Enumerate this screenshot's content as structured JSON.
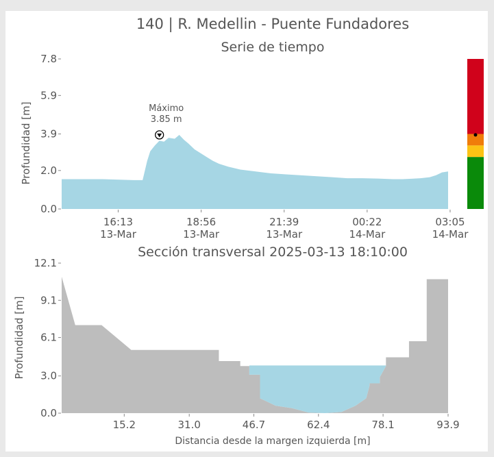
{
  "header": {
    "title": "140 | R. Medellin - Puente Fundadores"
  },
  "chart_data": [
    {
      "type": "area",
      "title": "Serie de tiempo",
      "ylabel": "Profundidad [m]",
      "ylim": [
        0.0,
        7.8
      ],
      "yticks": [
        "0.0",
        "2.0",
        "3.9",
        "5.9",
        "7.8"
      ],
      "xticks": [
        {
          "time": "16:13",
          "date": "13-Mar"
        },
        {
          "time": "18:56",
          "date": "13-Mar"
        },
        {
          "time": "21:39",
          "date": "13-Mar"
        },
        {
          "time": "00:22",
          "date": "14-Mar"
        },
        {
          "time": "03:05",
          "date": "14-Mar"
        }
      ],
      "x_hours_since_first_tick": [
        -1.85,
        -0.5,
        0.5,
        0.8,
        0.95,
        1.05,
        1.2,
        1.35,
        1.5,
        1.65,
        1.85,
        2.0,
        2.15,
        2.3,
        2.5,
        2.7,
        2.9,
        3.1,
        3.3,
        3.6,
        4.0,
        4.5,
        5.0,
        5.5,
        6.0,
        6.5,
        7.0,
        7.5,
        8.0,
        8.5,
        9.0,
        9.3,
        9.6,
        9.9,
        10.2,
        10.4,
        10.6,
        10.8
      ],
      "values": [
        1.55,
        1.55,
        1.5,
        1.5,
        2.5,
        3.0,
        3.3,
        3.55,
        3.5,
        3.7,
        3.65,
        3.85,
        3.6,
        3.4,
        3.1,
        2.9,
        2.7,
        2.5,
        2.35,
        2.2,
        2.05,
        1.95,
        1.85,
        1.8,
        1.75,
        1.7,
        1.65,
        1.6,
        1.6,
        1.58,
        1.55,
        1.55,
        1.57,
        1.6,
        1.65,
        1.75,
        1.9,
        1.95
      ],
      "max_annotation": {
        "label": "Máximo",
        "value": "3.85 m",
        "x_hours_since_first_tick": 1.35
      },
      "colors": {
        "fill": "#a6d6e4"
      }
    },
    {
      "type": "area",
      "title": "Sección transversal 2025-03-13 18:10:00",
      "xlabel": "Distancia desde la margen izquierda [m]",
      "ylabel": "Profundidad [m]",
      "xlim": [
        0.0,
        93.9
      ],
      "ylim": [
        0.0,
        12.1
      ],
      "xticks": [
        "15.2",
        "31.0",
        "46.7",
        "62.4",
        "78.1",
        "93.9"
      ],
      "yticks": [
        "0.0",
        "3.0",
        "6.1",
        "9.1",
        "12.1"
      ],
      "water_level": 3.85,
      "bed_profile": {
        "x": [
          0,
          0,
          3.3,
          9.7,
          16.9,
          38.2,
          38.2,
          43.4,
          43.4,
          45.6,
          45.6,
          48.2,
          48.2,
          52,
          56,
          60,
          64,
          68,
          71.4,
          74,
          74.8,
          74.8,
          77.3,
          77.3,
          78.8,
          78.8,
          84.4,
          84.4,
          88.7,
          88.7,
          93.9,
          93.9
        ],
        "y": [
          0,
          11.0,
          7.1,
          7.1,
          5.1,
          5.1,
          4.2,
          4.2,
          3.8,
          3.8,
          3.1,
          3.1,
          1.2,
          0.6,
          0.4,
          0.05,
          0,
          0.1,
          0.6,
          1.2,
          2.2,
          2.4,
          2.4,
          2.9,
          3.8,
          4.5,
          4.5,
          5.8,
          5.8,
          10.8,
          10.8,
          0
        ]
      },
      "colors": {
        "bed": "#bdbdbd",
        "water": "#a6d6e4"
      }
    }
  ],
  "alert_bar": {
    "levels": [
      {
        "name": "rojo",
        "color": "#d0021b",
        "from": 3.9,
        "to": 7.8
      },
      {
        "name": "naranja",
        "color": "#f07d0a",
        "from": 3.3,
        "to": 3.9
      },
      {
        "name": "amarillo",
        "color": "#fcc315",
        "from": 2.7,
        "to": 3.3
      },
      {
        "name": "verde",
        "color": "#0a8a0a",
        "from": 0.0,
        "to": 2.7
      }
    ],
    "current_level": 3.85
  }
}
